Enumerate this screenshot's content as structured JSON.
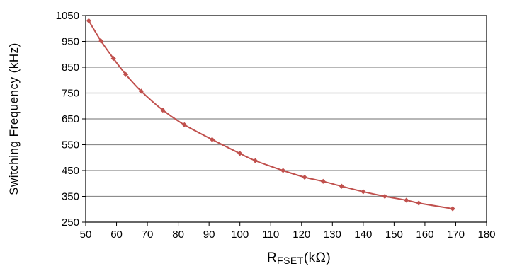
{
  "chart_data": {
    "type": "line",
    "title": "",
    "xlabel_main": "R",
    "xlabel_sub": "FSET",
    "xlabel_unit": "(kΩ)",
    "ylabel": "Switching Frequency (kHz)",
    "xlim": [
      50,
      180
    ],
    "ylim": [
      250,
      1050
    ],
    "xticks": [
      "50",
      "60",
      "70",
      "80",
      "90",
      "100",
      "110",
      "120",
      "130",
      "140",
      "150",
      "160",
      "170",
      "180"
    ],
    "yticks": [
      "1050",
      "950",
      "850",
      "750",
      "650",
      "550",
      "450",
      "350",
      "250"
    ],
    "grid": "horizontal",
    "line_color": "#c0504d",
    "series": [
      {
        "x": [
          51,
          55,
          59,
          63,
          68,
          75,
          82,
          91,
          100,
          105,
          114,
          121,
          127,
          133,
          140,
          147,
          154,
          158,
          169
        ],
        "y": [
          1030,
          951,
          884,
          822,
          757,
          684,
          627,
          570,
          516,
          488,
          450,
          424,
          408,
          389,
          368,
          350,
          335,
          324,
          302
        ]
      }
    ]
  }
}
